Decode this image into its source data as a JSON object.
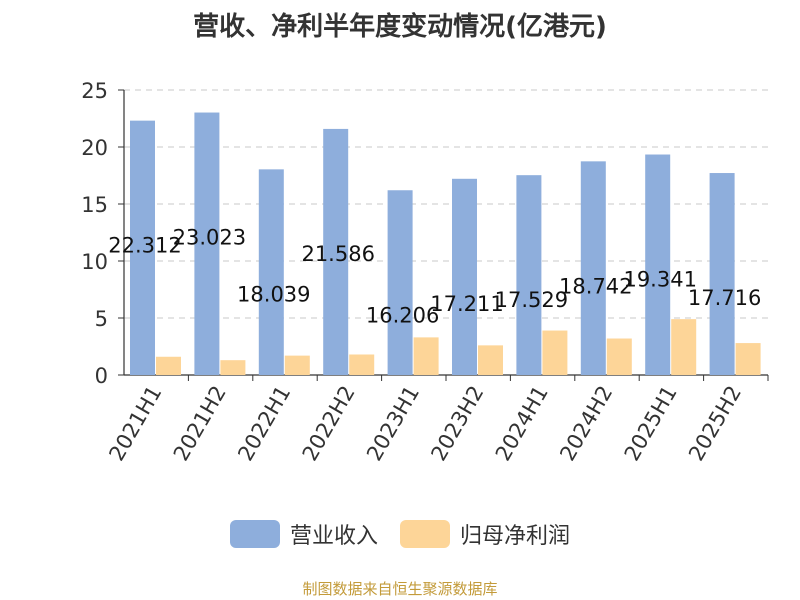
{
  "chart_data": {
    "type": "bar",
    "title": "营收、净利半年度变动情况(亿港元)",
    "categories": [
      "2021H1",
      "2021H2",
      "2022H1",
      "2022H2",
      "2023H1",
      "2023H2",
      "2024H1",
      "2024H2",
      "2025H1",
      "2025H2"
    ],
    "series": [
      {
        "name": "营业收入",
        "color": "#8eaedc",
        "values": [
          22.312,
          23.023,
          18.039,
          21.586,
          16.206,
          17.211,
          17.529,
          18.742,
          19.341,
          17.716
        ],
        "value_labels": [
          "22.312",
          "23.023",
          "18.039",
          "21.586",
          "16.206",
          "17.211",
          "17.529",
          "18.742",
          "19.341",
          "17.716"
        ]
      },
      {
        "name": "归母净利润",
        "color": "#fdd598",
        "values": [
          1.6,
          1.3,
          1.7,
          1.8,
          3.3,
          2.6,
          3.9,
          3.2,
          4.9,
          2.8
        ]
      }
    ],
    "ylim": [
      0,
      25
    ],
    "yticks": [
      0,
      5,
      10,
      15,
      20,
      25
    ],
    "grid": true,
    "legend": "bottom"
  },
  "source_note": "制图数据来自恒生聚源数据库"
}
